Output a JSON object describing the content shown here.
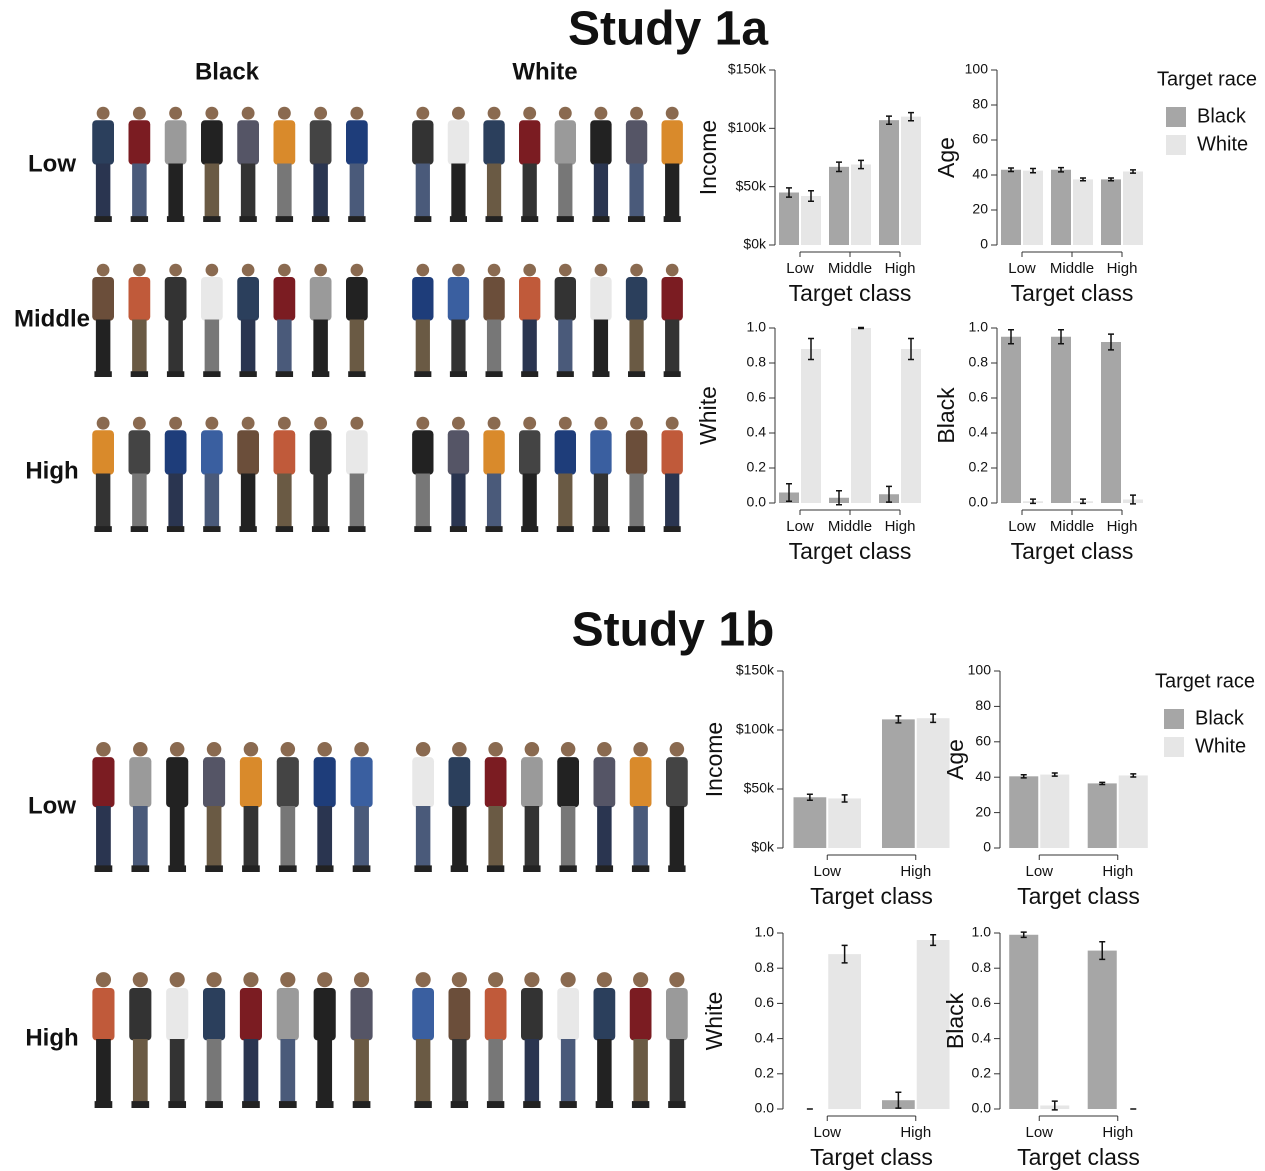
{
  "studies": [
    {
      "title": "Study 1a",
      "column_labels": [
        "Black",
        "White"
      ],
      "row_labels": [
        "Low",
        "Middle",
        "High"
      ]
    },
    {
      "title": "Study 1b",
      "row_labels": [
        "Low",
        "High"
      ]
    }
  ],
  "chart_data": [
    {
      "type": "bar",
      "ylabel": "Income",
      "xlabel": "Target class",
      "categories": [
        "Low",
        "Middle",
        "High"
      ],
      "series": [
        {
          "name": "Black",
          "color": "#a6a6a6",
          "values": [
            45000,
            67000,
            107000
          ],
          "errors": [
            4000,
            4000,
            3500
          ]
        },
        {
          "name": "White",
          "color": "#e6e6e6",
          "values": [
            42000,
            69000,
            110000
          ],
          "errors": [
            4500,
            3500,
            3500
          ]
        }
      ],
      "ylim": [
        0,
        150000
      ],
      "yticks": [
        {
          "value": 0,
          "label": "$0k"
        },
        {
          "value": 50000,
          "label": "$50k"
        },
        {
          "value": 100000,
          "label": "$100k"
        },
        {
          "value": 150000,
          "label": "$150k"
        }
      ]
    },
    {
      "type": "bar",
      "ylabel": "Age",
      "xlabel": "Target class",
      "categories": [
        "Low",
        "Middle",
        "High"
      ],
      "series": [
        {
          "name": "Black",
          "color": "#a6a6a6",
          "values": [
            43,
            43,
            37.5
          ],
          "errors": [
            1,
            1.2,
            0.8
          ]
        },
        {
          "name": "White",
          "color": "#e6e6e6",
          "values": [
            42.5,
            37.5,
            42
          ],
          "errors": [
            1.2,
            0.8,
            0.9
          ]
        }
      ],
      "ylim": [
        0,
        100
      ],
      "yticks": [
        0,
        20,
        40,
        60,
        80,
        100
      ],
      "legend": true,
      "legend_title": "Target race"
    },
    {
      "type": "bar",
      "ylabel": "White",
      "xlabel": "Target class",
      "categories": [
        "Low",
        "Middle",
        "High"
      ],
      "series": [
        {
          "name": "Black",
          "color": "#a6a6a6",
          "values": [
            0.06,
            0.03,
            0.05
          ],
          "errors": [
            0.05,
            0.04,
            0.045
          ]
        },
        {
          "name": "White",
          "color": "#e6e6e6",
          "values": [
            0.88,
            1.0,
            0.88
          ],
          "errors": [
            0.06,
            0.003,
            0.06
          ]
        }
      ],
      "ylim": [
        0,
        1
      ],
      "yticks": [
        {
          "value": 0,
          "label": "0.0"
        },
        0.2,
        0.4,
        0.6,
        0.8,
        {
          "value": 1,
          "label": "1.0"
        }
      ]
    },
    {
      "type": "bar",
      "ylabel": "Black",
      "xlabel": "Target class",
      "categories": [
        "Low",
        "Middle",
        "High"
      ],
      "series": [
        {
          "name": "Black",
          "color": "#a6a6a6",
          "values": [
            0.95,
            0.95,
            0.92
          ],
          "errors": [
            0.04,
            0.04,
            0.045
          ]
        },
        {
          "name": "White",
          "color": "#e6e6e6",
          "values": [
            0.01,
            0.01,
            0.02
          ],
          "errors": [
            0.012,
            0.012,
            0.025
          ]
        }
      ],
      "ylim": [
        0,
        1
      ],
      "yticks": [
        {
          "value": 0,
          "label": "0.0"
        },
        0.2,
        0.4,
        0.6,
        0.8,
        {
          "value": 1,
          "label": "1.0"
        }
      ]
    },
    {
      "type": "bar",
      "ylabel": "Income",
      "xlabel": "Target class",
      "categories": [
        "Low",
        "High"
      ],
      "series": [
        {
          "name": "Black",
          "color": "#a6a6a6",
          "values": [
            43000,
            109000
          ],
          "errors": [
            2500,
            3000
          ]
        },
        {
          "name": "White",
          "color": "#e6e6e6",
          "values": [
            42000,
            110000
          ],
          "errors": [
            3000,
            3500
          ]
        }
      ],
      "ylim": [
        0,
        150000
      ],
      "yticks": [
        {
          "value": 0,
          "label": "$0k"
        },
        {
          "value": 50000,
          "label": "$50k"
        },
        {
          "value": 100000,
          "label": "$100k"
        },
        {
          "value": 150000,
          "label": "$150k"
        }
      ]
    },
    {
      "type": "bar",
      "ylabel": "Age",
      "xlabel": "Target class",
      "categories": [
        "Low",
        "High"
      ],
      "series": [
        {
          "name": "Black",
          "color": "#a6a6a6",
          "values": [
            40.5,
            36.5
          ],
          "errors": [
            0.9,
            0.6
          ]
        },
        {
          "name": "White",
          "color": "#e6e6e6",
          "values": [
            41.5,
            41
          ],
          "errors": [
            0.9,
            0.9
          ]
        }
      ],
      "ylim": [
        0,
        100
      ],
      "yticks": [
        0,
        20,
        40,
        60,
        80,
        100
      ],
      "legend": true,
      "legend_title": "Target race"
    },
    {
      "type": "bar",
      "ylabel": "White",
      "xlabel": "Target class",
      "categories": [
        "Low",
        "High"
      ],
      "series": [
        {
          "name": "Black",
          "color": "#a6a6a6",
          "values": [
            0,
            0.05
          ],
          "errors": [
            0,
            0.045
          ]
        },
        {
          "name": "White",
          "color": "#e6e6e6",
          "values": [
            0.88,
            0.96
          ],
          "errors": [
            0.05,
            0.03
          ]
        }
      ],
      "ylim": [
        0,
        1
      ],
      "yticks": [
        {
          "value": 0,
          "label": "0.0"
        },
        0.2,
        0.4,
        0.6,
        0.8,
        {
          "value": 1,
          "label": "1.0"
        }
      ]
    },
    {
      "type": "bar",
      "ylabel": "Black",
      "xlabel": "Target class",
      "categories": [
        "Low",
        "High"
      ],
      "series": [
        {
          "name": "Black",
          "color": "#a6a6a6",
          "values": [
            0.99,
            0.9
          ],
          "errors": [
            0.015,
            0.05
          ]
        },
        {
          "name": "White",
          "color": "#e6e6e6",
          "values": [
            0.02,
            0
          ],
          "errors": [
            0.025,
            0
          ]
        }
      ],
      "ylim": [
        0,
        1
      ],
      "yticks": [
        {
          "value": 0,
          "label": "0.0"
        },
        0.2,
        0.4,
        0.6,
        0.8,
        {
          "value": 1,
          "label": "1.0"
        }
      ]
    }
  ]
}
